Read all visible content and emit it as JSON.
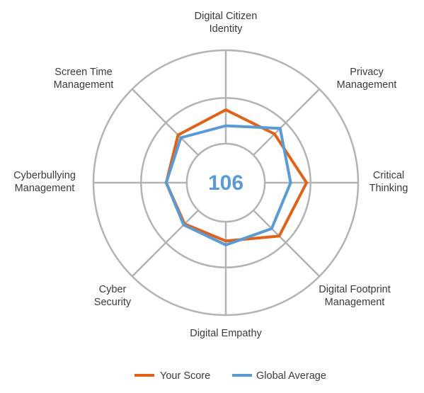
{
  "chart_data": {
    "type": "radar",
    "axes": [
      [
        "Digital Citizen",
        "Identity"
      ],
      [
        "Privacy",
        "Management"
      ],
      [
        "Critical",
        "Thinking"
      ],
      [
        "Digital Footprint",
        "Management"
      ],
      [
        "Digital Empathy"
      ],
      [
        "Cyber",
        "Security"
      ],
      [
        "Cyberbullying",
        "Management"
      ],
      [
        "Screen Time",
        "Management"
      ]
    ],
    "range": [
      0,
      1
    ],
    "rings": 3,
    "series": [
      {
        "name": "Your Score",
        "color": "#e0611a",
        "values": [
          0.55,
          0.52,
          0.61,
          0.57,
          0.44,
          0.44,
          0.45,
          0.51
        ]
      },
      {
        "name": "Global Average",
        "color": "#5b9bd5",
        "values": [
          0.43,
          0.58,
          0.49,
          0.49,
          0.47,
          0.45,
          0.45,
          0.48
        ]
      }
    ],
    "center_value": "106",
    "center_color": "#5b9bd5",
    "grid_color": "#b3b3b3",
    "legend_position": "bottom"
  }
}
